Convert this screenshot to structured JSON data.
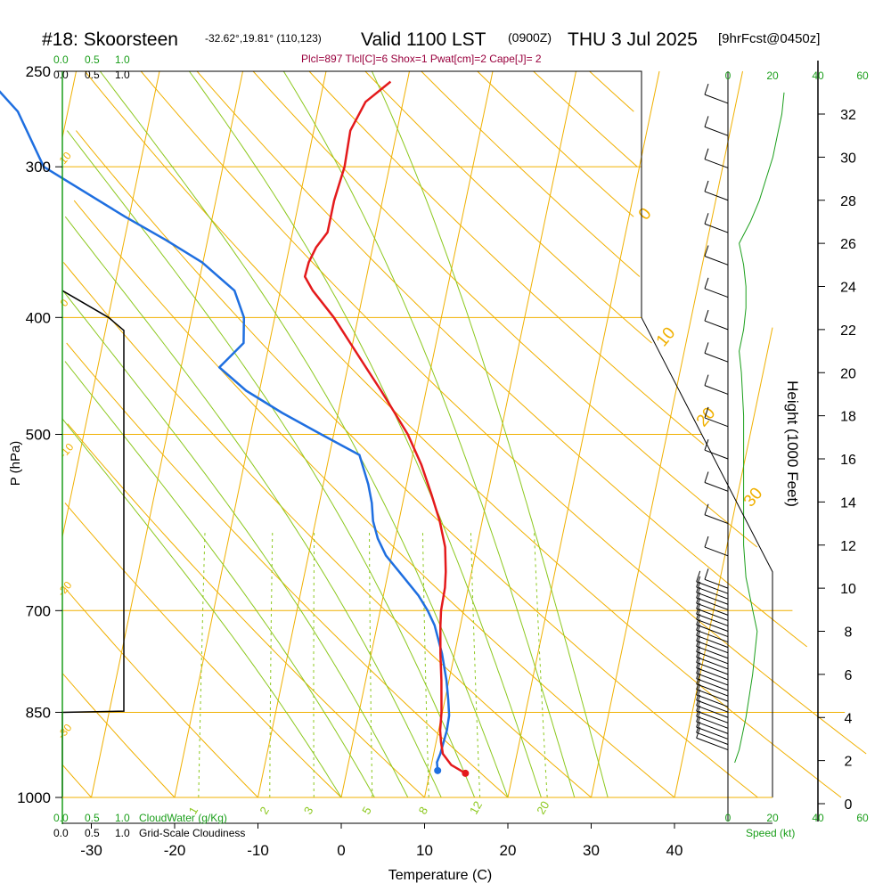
{
  "header": {
    "station": "#18: Skoorsteen",
    "coords": "-32.62°,19.81° (110,123)",
    "valid": "Valid 1100 LST",
    "utc": "(0900Z)",
    "date": "THU 3 Jul 2025",
    "forecast": "[9hrFcst@0450z]",
    "stats": "Plcl=897 Tlcl[C]=6 Shox=1 Pwat[cm]=2 Cape[J]= 2"
  },
  "legend": {
    "cw_ticks": [
      "0.0",
      "0.5",
      "1.0"
    ],
    "cloudwater_label": "CloudWater (g/Kg)",
    "cloudiness_label": "Grid-Scale Cloudiness",
    "speed_label": "Speed (kt)"
  },
  "colors": {
    "temperature": "#e41a1c",
    "dewpoint": "#1f6fe0",
    "isotherm": "#f0b000",
    "dry_adiabat": "#f0b000",
    "moist_adiabat": "#8cc81e",
    "mixing_ratio": "#8cc81e",
    "cloudwater": "#1a9e1a",
    "cloudiness": "#000000",
    "speed": "#1a9e1a"
  },
  "chart_data": {
    "type": "skew-t",
    "xlabel": "Temperature (C)",
    "ylabel": "P (hPa)",
    "y2label": "Height (1000 Feet)",
    "x_ticks": [
      -30,
      -20,
      -10,
      0,
      10,
      20,
      30,
      40
    ],
    "p_ticks": [
      250,
      300,
      400,
      500,
      700,
      850,
      1000
    ],
    "height_ticks": [
      0,
      2,
      4,
      6,
      8,
      10,
      12,
      14,
      16,
      18,
      20,
      22,
      24,
      26,
      28,
      30,
      32
    ],
    "speed_ticks_top": [
      "0",
      "20",
      "40",
      "60"
    ],
    "speed_ticks_bottom": [
      "0",
      "20",
      "40",
      "60"
    ],
    "dry_adiabat_labels": [
      "10",
      "0",
      "-10",
      "-20",
      "-30",
      "0",
      "10",
      "20",
      "30"
    ],
    "mixing_ratio_labels": [
      "1",
      "2",
      "3",
      "5",
      "8",
      "12",
      "20"
    ],
    "series": [
      {
        "name": "",
        "role": "temperature",
        "points": [
          [
            955,
            14.3
          ],
          [
            940,
            12.4
          ],
          [
            920,
            11.1
          ],
          [
            900,
            10.6
          ],
          [
            880,
            10.2
          ],
          [
            850,
            9.9
          ],
          [
            800,
            9.1
          ],
          [
            760,
            8.3
          ],
          [
            720,
            7.6
          ],
          [
            700,
            7.3
          ],
          [
            670,
            7.2
          ],
          [
            650,
            6.9
          ],
          [
            620,
            6.2
          ],
          [
            590,
            4.9
          ],
          [
            560,
            3.2
          ],
          [
            530,
            1.3
          ],
          [
            500,
            -1.1
          ],
          [
            480,
            -3.2
          ],
          [
            460,
            -5.4
          ],
          [
            440,
            -7.8
          ],
          [
            420,
            -10.3
          ],
          [
            400,
            -12.9
          ],
          [
            380,
            -16.1
          ],
          [
            370,
            -17.4
          ],
          [
            360,
            -17.3
          ],
          [
            350,
            -16.8
          ],
          [
            340,
            -15.8
          ],
          [
            320,
            -15.8
          ],
          [
            300,
            -15.4
          ],
          [
            280,
            -15.6
          ],
          [
            265,
            -14.5
          ],
          [
            255,
            -12.0
          ]
        ]
      },
      {
        "name": "",
        "role": "dewpoint",
        "points": [
          [
            950,
            10.9
          ],
          [
            935,
            10.6
          ],
          [
            920,
            10.8
          ],
          [
            900,
            10.9
          ],
          [
            880,
            11.0
          ],
          [
            855,
            10.9
          ],
          [
            830,
            10.4
          ],
          [
            800,
            9.7
          ],
          [
            760,
            8.5
          ],
          [
            720,
            6.9
          ],
          [
            700,
            5.7
          ],
          [
            680,
            4.2
          ],
          [
            650,
            1.3
          ],
          [
            630,
            -0.7
          ],
          [
            610,
            -2.1
          ],
          [
            590,
            -3.1
          ],
          [
            570,
            -3.7
          ],
          [
            550,
            -4.6
          ],
          [
            520,
            -6.4
          ],
          [
            500,
            -11.5
          ],
          [
            480,
            -16.7
          ],
          [
            460,
            -21.6
          ],
          [
            440,
            -25.4
          ],
          [
            420,
            -23.1
          ],
          [
            400,
            -23.7
          ],
          [
            380,
            -25.5
          ],
          [
            360,
            -30.1
          ],
          [
            345,
            -35.0
          ],
          [
            330,
            -40.5
          ],
          [
            300,
            -51.5
          ],
          [
            270,
            -56.0
          ],
          [
            255,
            -60.0
          ]
        ]
      },
      {
        "name": "",
        "role": "cloudiness",
        "points": [
          [
            1000,
            0.0
          ],
          [
            850,
            0.0
          ],
          [
            848,
            1.0
          ],
          [
            720,
            1.0
          ],
          [
            650,
            1.0
          ],
          [
            600,
            1.0
          ],
          [
            550,
            1.0
          ],
          [
            500,
            1.0
          ],
          [
            450,
            1.0
          ],
          [
            410,
            1.0
          ],
          [
            400,
            0.75
          ],
          [
            380,
            0.0
          ]
        ]
      },
      {
        "name": "",
        "role": "wind_speed_kt",
        "heights_kft": [
          1.9,
          2.5,
          4,
          6,
          8,
          9,
          10.5,
          12,
          14,
          16,
          18,
          20,
          21,
          22,
          23,
          24,
          25,
          26,
          27,
          28,
          29,
          30,
          31,
          32,
          33
        ],
        "speeds": [
          3,
          5,
          8,
          11,
          13,
          11,
          8,
          7,
          7,
          7,
          7,
          6,
          5,
          7,
          8,
          8,
          7,
          5,
          10,
          14,
          17,
          20,
          22,
          24,
          25
        ]
      }
    ]
  }
}
